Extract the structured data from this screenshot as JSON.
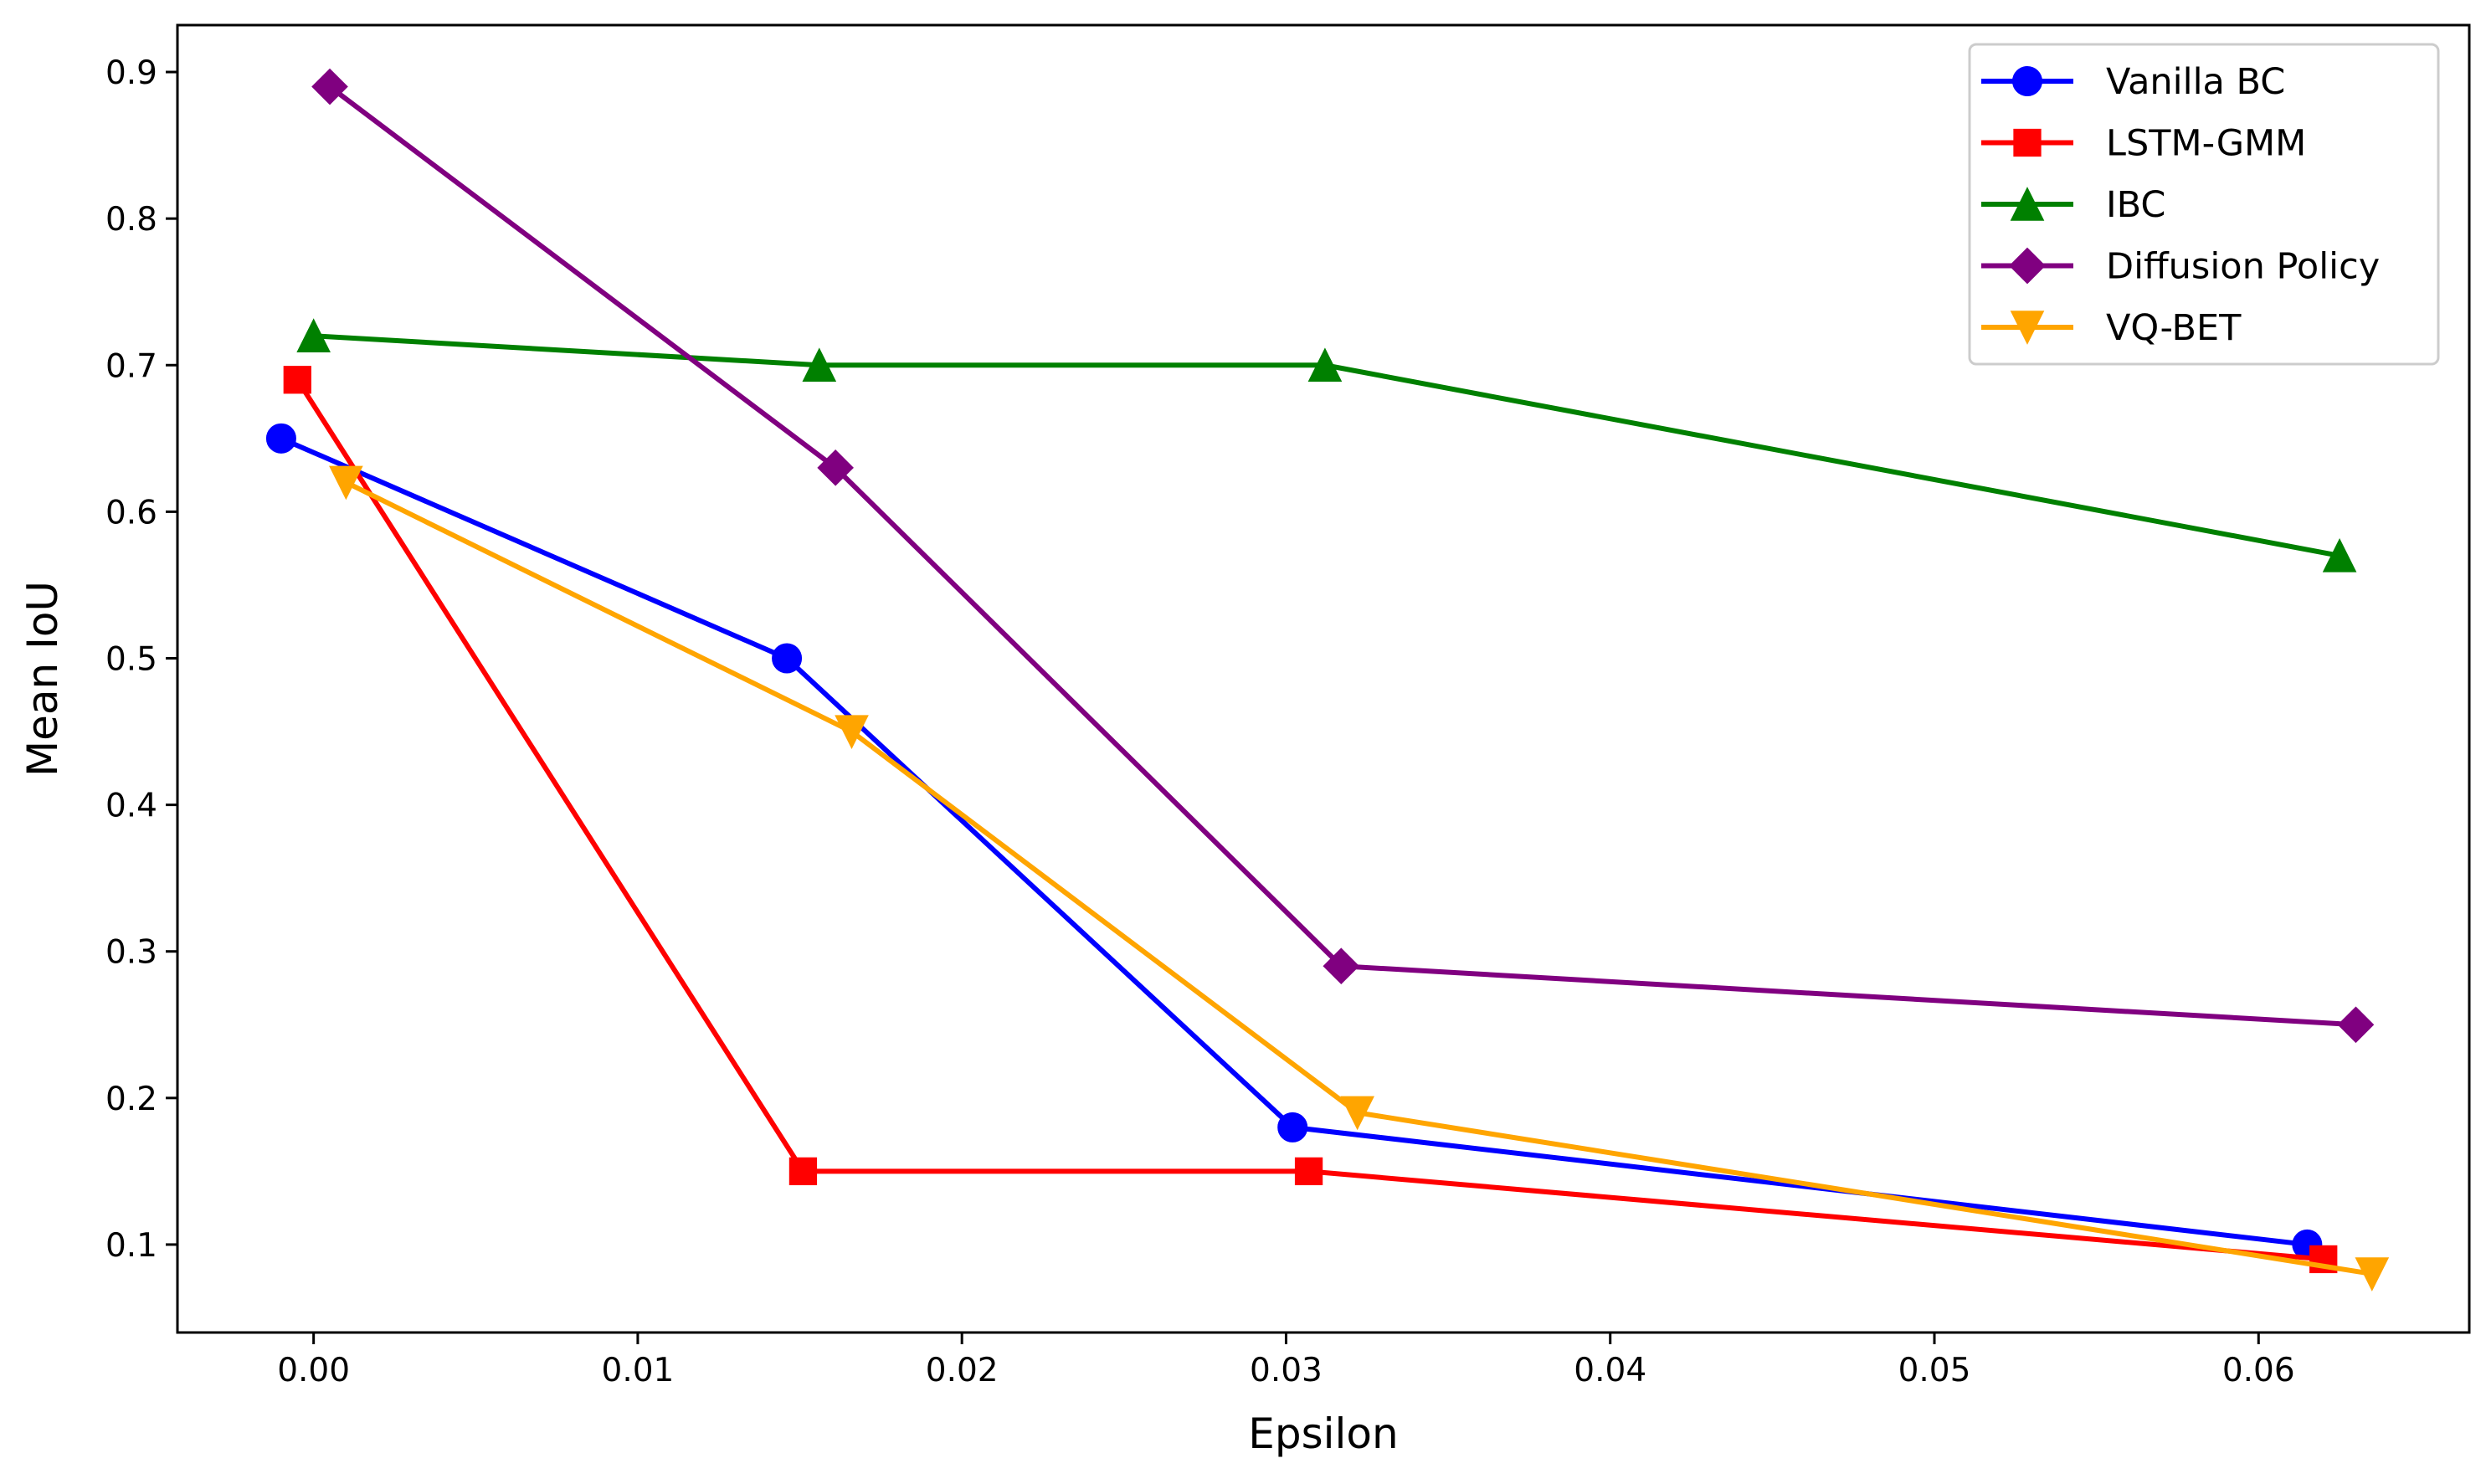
{
  "chart_data": {
    "type": "line",
    "xlabel": "Epsilon",
    "ylabel": "Mean IoU",
    "xlim": [
      -0.0042,
      0.0665
    ],
    "ylim": [
      0.04,
      0.932
    ],
    "x_ticks": [
      0.0,
      0.01,
      0.02,
      0.03,
      0.04,
      0.05,
      0.06
    ],
    "x_tick_labels": [
      "0.00",
      "0.01",
      "0.02",
      "0.03",
      "0.04",
      "0.05",
      "0.06"
    ],
    "y_ticks": [
      0.1,
      0.2,
      0.3,
      0.4,
      0.5,
      0.6,
      0.7,
      0.8,
      0.9
    ],
    "y_tick_labels": [
      "0.1",
      "0.2",
      "0.3",
      "0.4",
      "0.5",
      "0.6",
      "0.7",
      "0.8",
      "0.9"
    ],
    "grid": false,
    "legend_position": "top-right",
    "series": [
      {
        "name": "Vanilla BC",
        "color": "#0000ff",
        "marker": "circle",
        "x": [
          -0.001,
          0.0146,
          0.0302,
          0.0615
        ],
        "y": [
          0.65,
          0.5,
          0.18,
          0.1
        ]
      },
      {
        "name": "LSTM-GMM",
        "color": "#ff0000",
        "marker": "square",
        "x": [
          -0.0005,
          0.0151,
          0.0307,
          0.062
        ],
        "y": [
          0.69,
          0.15,
          0.15,
          0.09
        ]
      },
      {
        "name": "IBC",
        "color": "#008000",
        "marker": "triangle-up",
        "x": [
          0.0,
          0.0156,
          0.0312,
          0.0625
        ],
        "y": [
          0.72,
          0.7,
          0.7,
          0.57
        ]
      },
      {
        "name": "Diffusion Policy",
        "color": "#800080",
        "marker": "diamond",
        "x": [
          0.0005,
          0.0161,
          0.0317,
          0.063
        ],
        "y": [
          0.89,
          0.63,
          0.29,
          0.25
        ]
      },
      {
        "name": "VQ-BET",
        "color": "#ffa500",
        "marker": "triangle-down",
        "x": [
          0.001,
          0.0166,
          0.0322,
          0.0635
        ],
        "y": [
          0.62,
          0.45,
          0.19,
          0.08
        ]
      }
    ]
  }
}
